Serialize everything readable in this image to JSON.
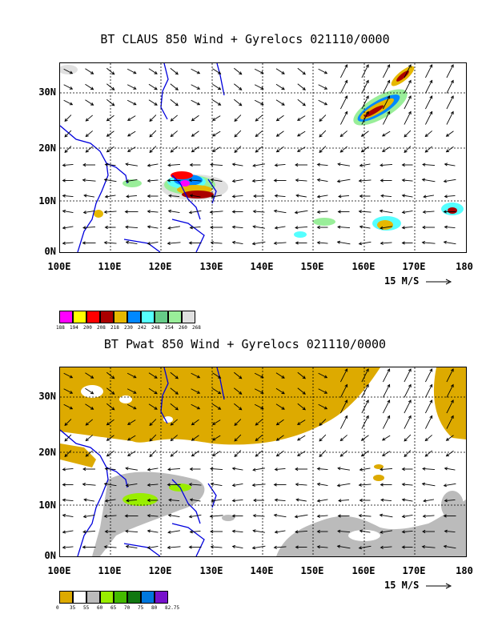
{
  "panels": [
    {
      "title": "BT CLAUS 850 Wind + Gyrelocs 021110/0000",
      "lat_labels": [
        "30N",
        "20N",
        "10N",
        "0N"
      ],
      "lon_labels": [
        "100E",
        "110E",
        "120E",
        "130E",
        "140E",
        "150E",
        "160E",
        "170E",
        "180"
      ],
      "ref_vector": "15 M/S",
      "legend_colors": [
        "#ff00ff",
        "#ffff00",
        "#ff0000",
        "#aa0000",
        "#e6b800",
        "#0088ff",
        "#55ffff",
        "#66cc88",
        "#99ee99",
        "#e0e0e0"
      ],
      "legend_labels": [
        "188",
        "194",
        "200",
        "208",
        "218",
        "230",
        "242",
        "248",
        "254",
        "260",
        "268"
      ]
    },
    {
      "title": "BT Pwat 850 Wind + Gyrelocs 021110/0000",
      "lat_labels": [
        "30N",
        "20N",
        "10N",
        "0N"
      ],
      "lon_labels": [
        "100E",
        "110E",
        "120E",
        "130E",
        "140E",
        "150E",
        "160E",
        "170E",
        "180"
      ],
      "ref_vector": "15 M/S",
      "legend_colors": [
        "#ddaa00",
        "#ffffff",
        "#bbbbbb",
        "#99ee00",
        "#44bb00",
        "#117711",
        "#0077dd",
        "#7711cc"
      ],
      "legend_labels": [
        "0",
        "35",
        "55",
        "60",
        "65",
        "70",
        "75",
        "80",
        "82.75"
      ]
    }
  ]
}
